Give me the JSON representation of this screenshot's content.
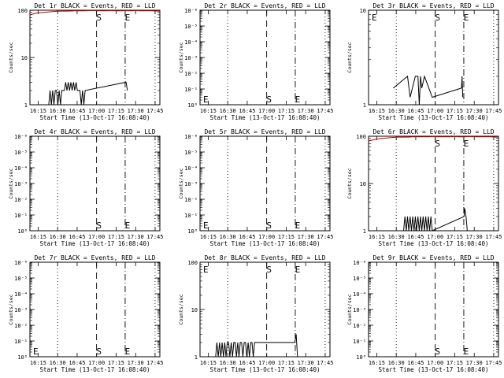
{
  "figure": {
    "x_ticks": [
      "16:15",
      "16:30",
      "16:45",
      "17:00",
      "17:15",
      "17:30",
      "17:45"
    ]
  },
  "chart_data": [
    {
      "type": "line",
      "title": "Det 1r BLACK = Events, RED = LLD",
      "xlabel": "Start Time (13-Oct-17 16:08:40)",
      "ylabel": "Counts/sec",
      "x_unit": "minutes after 16:08:40",
      "xlim": [
        0,
        100
      ],
      "ylim": [
        1,
        100
      ],
      "ylog": true,
      "y_ticks": [
        "1",
        "10",
        "100"
      ],
      "marker_lines": [
        {
          "x": 21.3,
          "style": "dotted",
          "label": ""
        },
        {
          "x": 51.3,
          "style": "dashed",
          "label": "S"
        },
        {
          "x": 73.3,
          "style": "dashdot",
          "label": "E"
        },
        {
          "x": 96.3,
          "style": "dotted",
          "label": ""
        }
      ],
      "series": [
        {
          "name": "RED = LLD",
          "color": "#cc0000",
          "x": [
            0,
            3,
            6,
            10,
            14,
            18,
            22,
            26,
            30,
            34,
            38,
            42,
            46,
            50,
            54,
            58,
            62,
            66,
            70,
            74,
            78,
            82,
            86,
            90,
            94,
            98,
            100
          ],
          "y": [
            80,
            84,
            88,
            90,
            92,
            94,
            95,
            96,
            96,
            97,
            97,
            97,
            98,
            98,
            97,
            97,
            98,
            97,
            97,
            98,
            97,
            98,
            97,
            97,
            97,
            96,
            96
          ]
        },
        {
          "name": "BLACK = Events",
          "color": "#000000",
          "x": [
            14.5,
            15.5,
            16.5,
            17.5,
            18.5,
            19.5,
            20.5,
            21.5,
            22.5,
            23.5,
            24.5,
            25.5,
            26.5,
            27.5,
            28.5,
            29.5,
            30.5,
            31.5,
            32.5,
            33.5,
            34.5,
            35.5,
            36.5,
            37.5,
            38.5,
            39.5,
            40.5,
            41.5,
            42.5,
            74,
            75
          ],
          "y": [
            1,
            2,
            1,
            2,
            1,
            2,
            2,
            1,
            2,
            1,
            2,
            2,
            2,
            3,
            2,
            3,
            2,
            3,
            2,
            3,
            2,
            3,
            2,
            2,
            2,
            1,
            2,
            1,
            2,
            3,
            2
          ]
        }
      ]
    },
    {
      "type": "line",
      "title": "Det 2r BLACK = Events, RED = LLD",
      "xlabel": "Start Time (13-Oct-17 16:08:40)",
      "ylabel": "Counts/sec",
      "x_unit": "minutes after 16:08:40",
      "xlim": [
        0,
        100
      ],
      "ylim": [
        1,
        1000000
      ],
      "ylog": true,
      "y_ticks": [
        "10⁰",
        "10⁻¹",
        "10⁻²",
        "10⁻³",
        "10⁻⁴",
        "10⁻⁵",
        "10⁻⁶"
      ],
      "marker_lines": [
        {
          "x": 21.3,
          "style": "dotted",
          "label": "E"
        },
        {
          "x": 51.3,
          "style": "dashed",
          "label": "S"
        },
        {
          "x": 73.3,
          "style": "dashdot",
          "label": "E"
        },
        {
          "x": 96.3,
          "style": "dotted",
          "label": ""
        }
      ],
      "series": []
    },
    {
      "type": "line",
      "title": "Det 3r BLACK = Events, RED = LLD",
      "xlabel": "Start Time (13-Oct-17 16:08:40)",
      "ylabel": "Counts/sec",
      "x_unit": "minutes after 16:08:40",
      "xlim": [
        0,
        100
      ],
      "ylim": [
        1,
        10
      ],
      "ylog": true,
      "y_ticks": [
        "1",
        "10"
      ],
      "marker_lines": [
        {
          "x": 21.3,
          "style": "dotted",
          "label": "E"
        },
        {
          "x": 51.3,
          "style": "dashed",
          "label": "S"
        },
        {
          "x": 73.3,
          "style": "dashdot",
          "label": "E"
        },
        {
          "x": 96.3,
          "style": "dotted",
          "label": ""
        }
      ],
      "series": [
        {
          "name": "BLACK = Events",
          "color": "#000000",
          "x": [
            19,
            30,
            32,
            36,
            37,
            38,
            39,
            40,
            41,
            43,
            49,
            71.5,
            72,
            72.5
          ],
          "y": [
            1.5,
            2,
            1.2,
            2,
            2,
            2,
            1,
            2,
            1.5,
            2,
            1.2,
            1.5,
            2,
            1.2
          ]
        }
      ]
    },
    {
      "type": "line",
      "title": "Det 4r BLACK = Events, RED = LLD",
      "xlabel": "Start Time (13-Oct-17 16:08:40)",
      "ylabel": "Counts/sec",
      "x_unit": "minutes after 16:08:40",
      "xlim": [
        0,
        100
      ],
      "ylim": [
        1,
        1000000
      ],
      "ylog": true,
      "y_ticks": [
        "10⁰",
        "10⁻¹",
        "10⁻²",
        "10⁻³",
        "10⁻⁴",
        "10⁻⁵",
        "10⁻⁶"
      ],
      "marker_lines": [
        {
          "x": 21.3,
          "style": "dotted",
          "label": ""
        },
        {
          "x": 51.3,
          "style": "dashed",
          "label": "S"
        },
        {
          "x": 73.3,
          "style": "dashdot",
          "label": "E"
        },
        {
          "x": 96.3,
          "style": "dotted",
          "label": ""
        }
      ],
      "series": []
    },
    {
      "type": "line",
      "title": "Det 5r BLACK = Events, RED = LLD",
      "xlabel": "Start Time (13-Oct-17 16:08:40)",
      "ylabel": "Counts/sec",
      "x_unit": "minutes after 16:08:40",
      "xlim": [
        0,
        100
      ],
      "ylim": [
        1,
        1000000
      ],
      "ylog": true,
      "y_ticks": [
        "10⁰",
        "10⁻¹",
        "10⁻²",
        "10⁻³",
        "10⁻⁴",
        "10⁻⁵",
        "10⁻⁶"
      ],
      "marker_lines": [
        {
          "x": 21.3,
          "style": "dotted",
          "label": "E"
        },
        {
          "x": 51.3,
          "style": "dashed",
          "label": "S"
        },
        {
          "x": 73.3,
          "style": "dashdot",
          "label": "E"
        },
        {
          "x": 96.3,
          "style": "dotted",
          "label": ""
        }
      ],
      "series": []
    },
    {
      "type": "line",
      "title": "Det 6r BLACK = Events, RED = LLD",
      "xlabel": "Start Time (13-Oct-17 16:08:40)",
      "ylabel": "Counts/sec",
      "x_unit": "minutes after 16:08:40",
      "xlim": [
        0,
        100
      ],
      "ylim": [
        1,
        100
      ],
      "ylog": true,
      "y_ticks": [
        "1",
        "10",
        "100"
      ],
      "marker_lines": [
        {
          "x": 21.3,
          "style": "dotted",
          "label": ""
        },
        {
          "x": 51.3,
          "style": "dashed",
          "label": "S"
        },
        {
          "x": 73.3,
          "style": "dashdot",
          "label": "E"
        },
        {
          "x": 96.3,
          "style": "dotted",
          "label": ""
        }
      ],
      "series": [
        {
          "name": "RED = LLD",
          "color": "#cc0000",
          "x": [
            0,
            3,
            6,
            10,
            14,
            18,
            22,
            26,
            30,
            34,
            38,
            42,
            46,
            50,
            54,
            58,
            62,
            66,
            70,
            74,
            78,
            82,
            86,
            90,
            94,
            98,
            100
          ],
          "y": [
            80,
            83,
            87,
            90,
            92,
            94,
            95,
            96,
            96,
            97,
            97,
            97,
            97,
            98,
            97,
            97,
            97,
            98,
            97,
            97,
            98,
            97,
            97,
            97,
            97,
            96,
            96
          ]
        },
        {
          "name": "BLACK = Events",
          "color": "#000000",
          "x": [
            27,
            28,
            29,
            30,
            31,
            32,
            33,
            34,
            35,
            36,
            37,
            38,
            39,
            40,
            41,
            42,
            43,
            44,
            45,
            46,
            47,
            48,
            49,
            73.5,
            74,
            75,
            76
          ],
          "y": [
            1,
            2,
            1,
            2,
            1,
            2,
            1,
            2,
            1,
            2,
            1,
            2,
            1,
            2,
            1,
            2,
            1,
            2,
            1,
            2,
            1,
            2,
            1,
            2,
            3,
            2,
            1
          ]
        }
      ]
    },
    {
      "type": "line",
      "title": "Det 7r BLACK = Events, RED = LLD",
      "xlabel": "Start Time (13-Oct-17 16:08:40)",
      "ylabel": "Counts/sec",
      "x_unit": "minutes after 16:08:40",
      "xlim": [
        0,
        100
      ],
      "ylim": [
        1,
        1000000
      ],
      "ylog": true,
      "y_ticks": [
        "10⁰",
        "10⁻¹",
        "10⁻²",
        "10⁻³",
        "10⁻⁴",
        "10⁻⁵",
        "10⁻⁶"
      ],
      "marker_lines": [
        {
          "x": 21.3,
          "style": "dotted",
          "label": "E"
        },
        {
          "x": 51.3,
          "style": "dashed",
          "label": "S"
        },
        {
          "x": 73.3,
          "style": "dashdot",
          "label": "E"
        },
        {
          "x": 96.3,
          "style": "dotted",
          "label": ""
        }
      ],
      "series": []
    },
    {
      "type": "line",
      "title": "Det 8r BLACK = Events, RED = LLD",
      "xlabel": "Start Time (13-Oct-17 16:08:40)",
      "ylabel": "Counts/sec",
      "x_unit": "minutes after 16:08:40",
      "xlim": [
        0,
        100
      ],
      "ylim": [
        1,
        100
      ],
      "ylog": true,
      "y_ticks": [
        "1",
        "10",
        "100"
      ],
      "marker_lines": [
        {
          "x": 21.3,
          "style": "dotted",
          "label": "E"
        },
        {
          "x": 51.3,
          "style": "dashed",
          "label": "S"
        },
        {
          "x": 73.3,
          "style": "dashdot",
          "label": "E"
        },
        {
          "x": 96.3,
          "style": "dotted",
          "label": ""
        }
      ],
      "series": [
        {
          "name": "BLACK = Events",
          "color": "#000000",
          "x": [
            12,
            13,
            14,
            15,
            16,
            17,
            18,
            19,
            20,
            21,
            22,
            23,
            24,
            25,
            26,
            27,
            28,
            29,
            30,
            31,
            32,
            33,
            34,
            35,
            36,
            37,
            38,
            39,
            40,
            41,
            42,
            73,
            74,
            75
          ],
          "y": [
            1,
            2,
            1,
            2,
            1,
            2,
            1,
            2,
            1,
            2,
            2,
            1,
            2,
            1,
            2,
            2,
            1,
            2,
            1,
            2,
            2,
            1,
            2,
            2,
            1,
            2,
            1,
            2,
            2,
            1,
            2,
            2,
            3,
            1
          ]
        }
      ]
    },
    {
      "type": "line",
      "title": "Det 9r BLACK = Events, RED = LLD",
      "xlabel": "Start Time (13-Oct-17 16:08:40)",
      "ylabel": "Counts/sec",
      "x_unit": "minutes after 16:08:40",
      "xlim": [
        0,
        100
      ],
      "ylim": [
        1,
        1000000
      ],
      "ylog": true,
      "y_ticks": [
        "10⁰",
        "10⁻¹",
        "10⁻²",
        "10⁻³",
        "10⁻⁴",
        "10⁻⁵",
        "10⁻⁶"
      ],
      "marker_lines": [
        {
          "x": 21.3,
          "style": "dotted",
          "label": ""
        },
        {
          "x": 51.3,
          "style": "dashed",
          "label": "S"
        },
        {
          "x": 73.3,
          "style": "dashdot",
          "label": "E"
        },
        {
          "x": 96.3,
          "style": "dotted",
          "label": ""
        }
      ],
      "series": []
    }
  ]
}
